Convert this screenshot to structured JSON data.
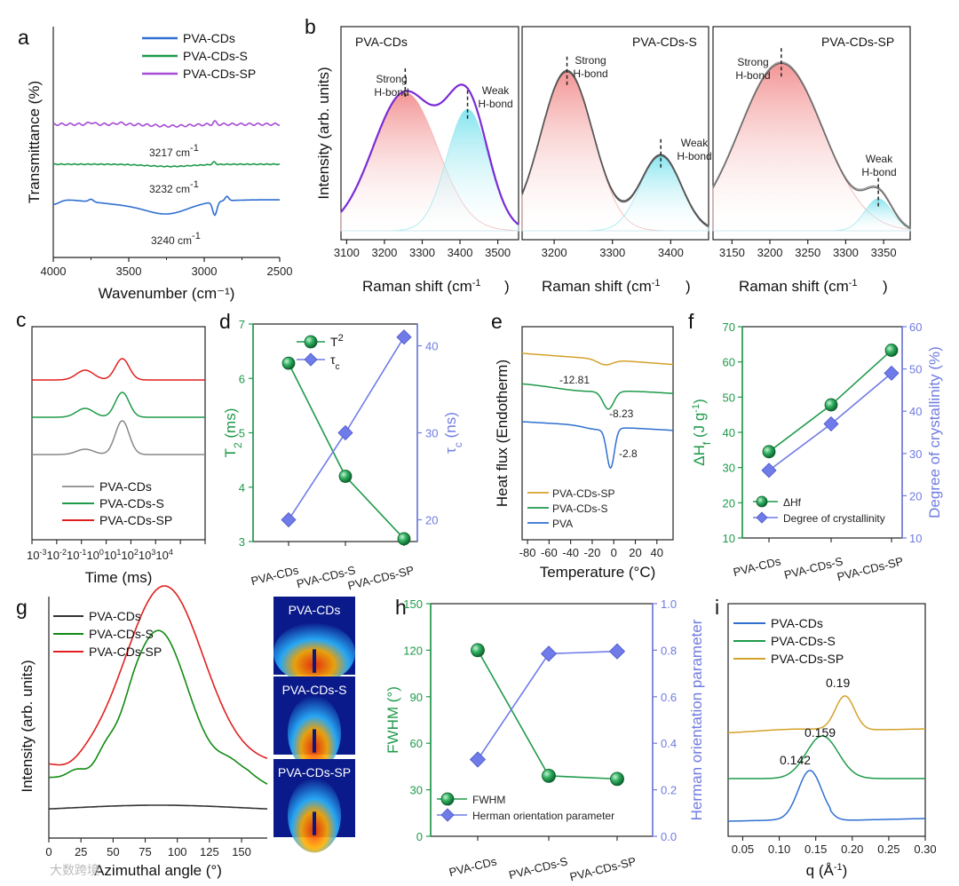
{
  "colors": {
    "blue": "#2f6fd0",
    "green": "#1e9a4a",
    "purple": "#a64bd6",
    "red": "#e02020",
    "gray": "#777777",
    "orange": "#d4a22a",
    "darkgreen": "#128a12",
    "black": "#333333",
    "violet": "#6b5bd8",
    "pink": "#f29a9a",
    "cyan": "#8fe6ee",
    "axisGreen": "#1e9a4a",
    "axisBlue": "#6f7be0"
  },
  "watermark": "大数跨境",
  "chart_data": [
    {
      "id": "a",
      "panel": "a",
      "type": "line",
      "xlabel": "Wavenumber (cm⁻¹)",
      "ylabel": "Transmittance (%)",
      "xlim": [
        4000,
        2500
      ],
      "reverse_x": true,
      "xticks": [
        4000,
        3500,
        3000,
        2500
      ],
      "legend": [
        "PVA-CDs",
        "PVA-CDs-S",
        "PVA-CDs-SP"
      ],
      "annotations": [
        "3217 cm⁻¹",
        "3232 cm⁻¹",
        "3240 cm⁻¹"
      ]
    },
    {
      "id": "b1",
      "panel": "b",
      "type": "line",
      "title": "PVA-CDs",
      "xlabel": "Raman shift (cm⁻¹)",
      "ylabel": "Intensity (arb. units)",
      "xticks": [
        3100,
        3200,
        3300,
        3400,
        3500
      ],
      "annotations": [
        "Strong H-bond",
        "Weak H-bond"
      ],
      "peaks": [
        {
          "center": 3255,
          "label": "Strong H-bond"
        },
        {
          "center": 3420,
          "label": "Weak H-bond"
        }
      ]
    },
    {
      "id": "b2",
      "panel": "b",
      "type": "line",
      "title": "PVA-CDs-S",
      "xlabel": "Raman shift (cm⁻¹)",
      "xticks": [
        3200,
        3300,
        3400
      ],
      "annotations": [
        "Strong H-bond",
        "Weak H-bond"
      ],
      "peaks": [
        {
          "center": 3222,
          "label": "Strong H-bond"
        },
        {
          "center": 3383,
          "label": "Weak H-bond"
        }
      ]
    },
    {
      "id": "b3",
      "panel": "b",
      "type": "line",
      "title": "PVA-CDs-SP",
      "xlabel": "Raman shift (cm⁻¹)",
      "xticks": [
        3150,
        3200,
        3250,
        3300,
        3350
      ],
      "annotations": [
        "Strong H-bond",
        "Weak H-bond"
      ],
      "peaks": [
        {
          "center": 3215,
          "label": "Strong H-bond"
        },
        {
          "center": 3343,
          "label": "Weak H-bond"
        }
      ]
    },
    {
      "id": "c",
      "panel": "c",
      "type": "line",
      "xlabel": "Time (ms)",
      "xscale": "log",
      "xticks": [
        "10⁻³",
        "10⁻²",
        "10⁻¹",
        "10⁰",
        "10¹",
        "10²",
        "10³",
        "10⁴"
      ],
      "legend": [
        "PVA-CDs",
        "PVA-CDs-S",
        "PVA-CDs-SP"
      ]
    },
    {
      "id": "d",
      "panel": "d",
      "type": "line",
      "categories": [
        "PVA-CDs",
        "PVA-CDs-S",
        "PVA-CDs-SP"
      ],
      "ylabel": "T₂ (ms)",
      "y2label": "τc (ns)",
      "ylim": [
        3,
        7
      ],
      "y2lim": [
        17.5,
        42.5
      ],
      "yticks": [
        3,
        4,
        5,
        6,
        7
      ],
      "y2ticks": [
        20,
        30,
        40
      ],
      "series": [
        {
          "name": "T₂",
          "values": [
            6.28,
            4.2,
            3.05
          ]
        },
        {
          "name": "τc",
          "values": [
            20,
            30,
            41
          ]
        }
      ],
      "legend": [
        "T₂",
        "τc"
      ]
    },
    {
      "id": "e",
      "panel": "e",
      "type": "line",
      "xlabel": "Temperature (°C)",
      "ylabel": "Heat flux (Endotherm)",
      "xlim": [
        -80,
        50
      ],
      "xticks": [
        -80,
        -60,
        -40,
        -20,
        0,
        20,
        40
      ],
      "legend": [
        "PVA-CDs-SP",
        "PVA-CDs-S",
        "PVA"
      ],
      "annotations": [
        "-12.81",
        "-8.23",
        "-2.8"
      ]
    },
    {
      "id": "f",
      "panel": "f",
      "type": "line",
      "categories": [
        "PVA-CDs",
        "PVA-CDs-S",
        "PVA-CDs-SP"
      ],
      "ylabel": "ΔHf (J g⁻¹)",
      "y2label": "Degree of crystallinity (%)",
      "ylim": [
        10,
        70
      ],
      "y2lim": [
        10,
        60
      ],
      "yticks": [
        10,
        20,
        30,
        40,
        50,
        60,
        70
      ],
      "y2ticks": [
        10,
        20,
        30,
        40,
        50,
        60
      ],
      "series": [
        {
          "name": "ΔHf",
          "values": [
            34.5,
            47.8,
            63.3
          ]
        },
        {
          "name": "Degree of crystallinity",
          "values": [
            26,
            37,
            49
          ]
        }
      ],
      "legend": [
        "ΔHf",
        "Degree of crystallinity"
      ]
    },
    {
      "id": "g",
      "panel": "g",
      "type": "line",
      "xlabel": "Azimuthal angle (°)",
      "ylabel": "Intensity (arb. units)",
      "xlim": [
        0,
        170
      ],
      "xticks": [
        0,
        25,
        50,
        75,
        100,
        125,
        150
      ],
      "legend": [
        "PVA-CDs",
        "PVA-CDs-S",
        "PVA-CDs-SP"
      ],
      "images": [
        "PVA-CDs",
        "PVA-CDs-S",
        "PVA-CDs-SP"
      ]
    },
    {
      "id": "h",
      "panel": "h",
      "type": "line",
      "categories": [
        "PVA-CDs",
        "PVA-CDs-S",
        "PVA-CDs-SP"
      ],
      "ylabel": "FWHM (°)",
      "y2label": "Herman orientation parameter",
      "ylim": [
        0,
        150
      ],
      "y2lim": [
        0,
        1
      ],
      "yticks": [
        0,
        30,
        60,
        90,
        120,
        150
      ],
      "y2ticks": [
        0.0,
        0.2,
        0.4,
        0.6,
        0.8,
        1.0
      ],
      "series": [
        {
          "name": "FWHM",
          "values": [
            120,
            39,
            37
          ]
        },
        {
          "name": "Herman orientation parameter",
          "values": [
            0.33,
            0.785,
            0.795
          ]
        }
      ],
      "legend": [
        "FWHM",
        "Herman orientation parameter"
      ]
    },
    {
      "id": "i",
      "panel": "i",
      "type": "line",
      "xlabel": "q (Å⁻¹)",
      "xlim": [
        0.03,
        0.3
      ],
      "xticks": [
        0.05,
        0.1,
        0.15,
        0.2,
        0.25,
        0.3
      ],
      "legend": [
        "PVA-CDs",
        "PVA-CDs-S",
        "PVA-CDs-SP"
      ],
      "annotations": [
        "0.19",
        "0.159",
        "0.142"
      ],
      "peaks": [
        {
          "series": "PVA-CDs",
          "q": 0.142
        },
        {
          "series": "PVA-CDs-S",
          "q": 0.159
        },
        {
          "series": "PVA-CDs-SP",
          "q": 0.19
        }
      ]
    }
  ]
}
